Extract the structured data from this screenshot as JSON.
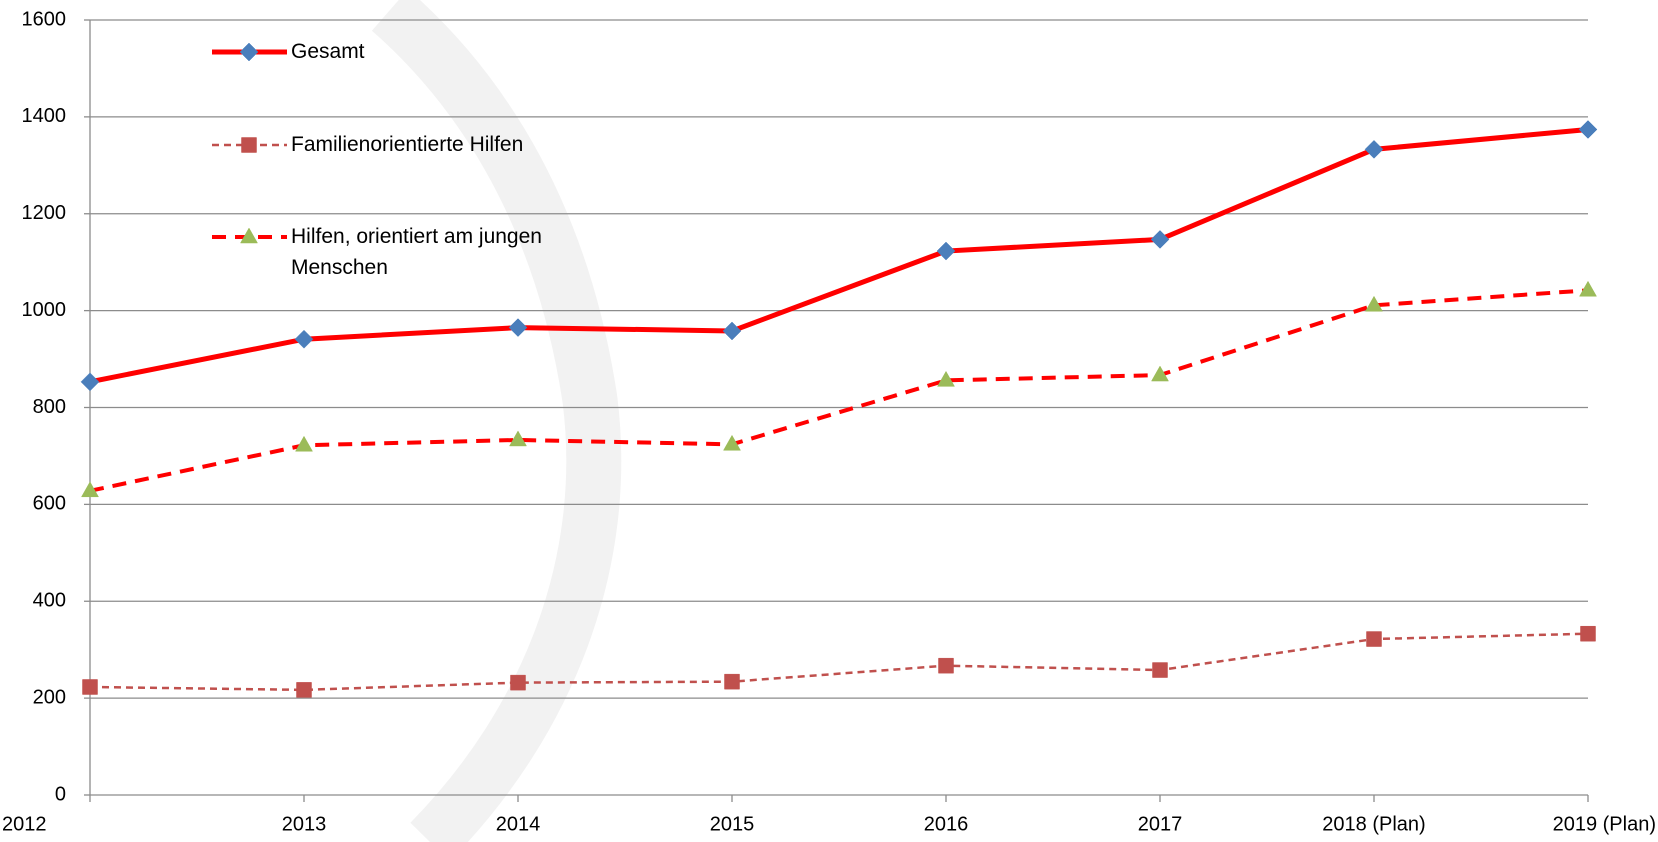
{
  "chart_data": {
    "type": "line",
    "categories": [
      "2012",
      "2013",
      "2014",
      "2015",
      "2016",
      "2017",
      "2018 (Plan)",
      "2019 (Plan)"
    ],
    "series": [
      {
        "name": "Gesamt",
        "color": "#ff0000",
        "marker": "diamond",
        "marker_color": "#4a7ebb",
        "line_style": "solid",
        "values": [
          853,
          941,
          965,
          958,
          1123,
          1147,
          1333,
          1374
        ]
      },
      {
        "name": "Familienorientierte Hilfen",
        "color": "#c0504d",
        "marker": "square",
        "marker_color": "#c0504d",
        "line_style": "dotted",
        "values": [
          223,
          217,
          232,
          234,
          267,
          258,
          322,
          333
        ]
      },
      {
        "name": "Hilfen, orientiert am jungen Menschen",
        "color": "#ff0000",
        "marker": "triangle",
        "marker_color": "#9bbb59",
        "line_style": "dashed",
        "values": [
          628,
          722,
          733,
          724,
          856,
          867,
          1011,
          1042
        ]
      }
    ],
    "ylim": [
      0,
      1600
    ],
    "yticks": [
      0,
      200,
      400,
      600,
      800,
      1000,
      1200,
      1400,
      1600
    ],
    "grid": true,
    "legend": "upper left"
  }
}
